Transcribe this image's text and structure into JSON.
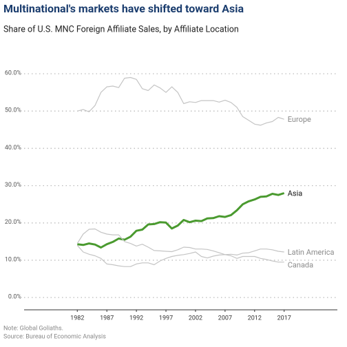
{
  "chart_data": {
    "type": "line",
    "title": "Multinational's markets have shifted toward Asia",
    "subtitle": "Share of U.S. MNC Foreign Affiliate Sales, by Affiliate Location",
    "notes": [
      "Note: Global Goliaths.",
      "Source: Bureau of Economic Analysis"
    ],
    "x": [
      1982,
      1983,
      1984,
      1985,
      1986,
      1987,
      1988,
      1989,
      1990,
      1991,
      1992,
      1993,
      1994,
      1995,
      1996,
      1997,
      1998,
      1999,
      2000,
      2001,
      2002,
      2003,
      2004,
      2005,
      2006,
      2007,
      2008,
      2009,
      2010,
      2011,
      2012,
      2013,
      2014,
      2015,
      2016,
      2017
    ],
    "series": [
      {
        "name": "Europe",
        "color": "#c4c4c4",
        "width": 1.2,
        "values": [
          50.0,
          50.4,
          49.8,
          51.5,
          55.0,
          56.5,
          56.7,
          56.3,
          58.8,
          59.0,
          58.5,
          56.0,
          55.5,
          57.0,
          56.2,
          55.0,
          56.5,
          55.0,
          52.0,
          52.5,
          52.3,
          52.8,
          52.8,
          52.8,
          52.4,
          52.9,
          52.3,
          51.0,
          48.5,
          47.5,
          46.5,
          46.2,
          46.8,
          47.2,
          48.3,
          47.8
        ]
      },
      {
        "name": "Asia",
        "color": "#4a9a2f",
        "width": 3,
        "values": [
          14.3,
          14.1,
          14.5,
          14.2,
          13.4,
          14.3,
          14.9,
          15.8,
          15.5,
          16.3,
          17.9,
          18.2,
          19.6,
          19.7,
          20.2,
          20.1,
          18.5,
          19.3,
          20.8,
          20.2,
          20.6,
          20.5,
          21.2,
          21.3,
          21.8,
          21.6,
          22.1,
          23.4,
          25.0,
          25.8,
          26.3,
          27.0,
          27.1,
          27.8,
          27.5,
          28.0
        ]
      },
      {
        "name": "Latin America",
        "color": "#c4c4c4",
        "width": 1.2,
        "values": [
          14.5,
          17.0,
          18.3,
          18.4,
          17.5,
          17.0,
          16.8,
          16.8,
          15.0,
          14.5,
          13.8,
          14.3,
          13.5,
          12.6,
          12.5,
          12.4,
          12.3,
          12.8,
          13.5,
          13.4,
          13.0,
          13.0,
          12.9,
          12.5,
          12.0,
          11.5,
          11.6,
          11.4,
          11.9,
          12.0,
          12.5,
          13.0,
          13.0,
          12.8,
          12.4,
          12.2
        ]
      },
      {
        "name": "Canada",
        "color": "#c4c4c4",
        "width": 1.2,
        "values": [
          14.0,
          12.2,
          11.6,
          11.2,
          10.5,
          9.0,
          8.8,
          8.5,
          8.3,
          8.3,
          9.0,
          9.3,
          9.3,
          8.8,
          9.8,
          10.5,
          11.0,
          11.3,
          11.5,
          11.8,
          12.2,
          11.0,
          10.6,
          11.1,
          11.4,
          11.5,
          11.2,
          10.5,
          11.0,
          11.0,
          11.0,
          10.5,
          10.2,
          9.8,
          9.5,
          9.5
        ]
      }
    ],
    "xlim": [
      1973,
      2026
    ],
    "xticks": [
      1982,
      1987,
      1992,
      1997,
      2002,
      2007,
      2012,
      2017
    ],
    "ylim": [
      -3.3,
      61.5
    ],
    "yticks": [
      {
        "value": 0,
        "label": "0.0%"
      },
      {
        "value": 10,
        "label": "10.0%"
      },
      {
        "value": 20,
        "label": "20.0%"
      },
      {
        "value": 30,
        "label": "30.0%"
      },
      {
        "value": 40,
        "label": "40.0%"
      },
      {
        "value": 50,
        "label": "50.0%"
      },
      {
        "value": 60,
        "label": "60.0%"
      }
    ],
    "grid": true
  }
}
